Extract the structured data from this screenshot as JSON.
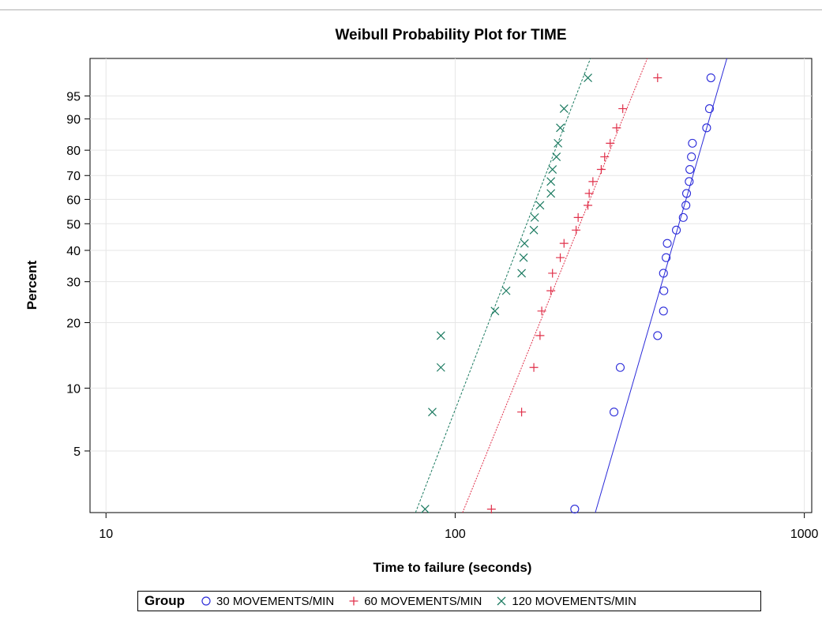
{
  "chart_data": {
    "type": "scatter",
    "title": "Weibull Probability Plot for TIME",
    "xlabel": "Time to failure (seconds)",
    "ylabel": "Percent",
    "x_scale": "log",
    "xlim": [
      9,
      1050
    ],
    "x_ticks": [
      10,
      100,
      1000
    ],
    "x_tick_labels": [
      "10",
      "100",
      "1000"
    ],
    "y_scale": "weibull",
    "ylim": [
      2.5,
      99
    ],
    "y_ticks": [
      5,
      10,
      20,
      30,
      40,
      50,
      60,
      70,
      80,
      90,
      95
    ],
    "y_tick_labels": [
      "5",
      "10",
      "20",
      "30",
      "40",
      "50",
      "60",
      "70",
      "80",
      "90",
      "95"
    ],
    "grid": true,
    "legend_position": "bottom",
    "legend_title": "Group",
    "series": [
      {
        "name": "30 MOVEMENTS/MIN",
        "marker": "circle",
        "color": "#2b2bd9",
        "points": [
          [
            220,
            2.6
          ],
          [
            285,
            7.7
          ],
          [
            297,
            12.5
          ],
          [
            380,
            17.5
          ],
          [
            395,
            22.5
          ],
          [
            396,
            27.5
          ],
          [
            395,
            32.5
          ],
          [
            402,
            37.5
          ],
          [
            405,
            42.5
          ],
          [
            430,
            47.5
          ],
          [
            450,
            52.5
          ],
          [
            458,
            57.5
          ],
          [
            460,
            62.5
          ],
          [
            468,
            67.5
          ],
          [
            470,
            72.5
          ],
          [
            475,
            77.5
          ],
          [
            478,
            82.5
          ],
          [
            525,
            87.5
          ],
          [
            535,
            92.5
          ],
          [
            540,
            97.5
          ]
        ],
        "fit_line": [
          [
            252,
            2.5
          ],
          [
            600,
            99
          ]
        ]
      },
      {
        "name": "60 MOVEMENTS/MIN",
        "marker": "plus",
        "color": "#e0304a",
        "points": [
          [
            127,
            2.6
          ],
          [
            155,
            7.7
          ],
          [
            168,
            12.5
          ],
          [
            175,
            17.5
          ],
          [
            177,
            22.5
          ],
          [
            188,
            27.5
          ],
          [
            190,
            32.5
          ],
          [
            200,
            37.5
          ],
          [
            205,
            42.5
          ],
          [
            222,
            47.5
          ],
          [
            225,
            52.5
          ],
          [
            240,
            57.5
          ],
          [
            242,
            62.5
          ],
          [
            248,
            67.5
          ],
          [
            262,
            72.5
          ],
          [
            268,
            77.5
          ],
          [
            278,
            82.5
          ],
          [
            290,
            87.5
          ],
          [
            302,
            92.5
          ],
          [
            380,
            97.5
          ]
        ],
        "fit_line": [
          [
            105,
            2.5
          ],
          [
            355,
            99
          ]
        ]
      },
      {
        "name": "120 MOVEMENTS/MIN",
        "marker": "x",
        "color": "#1b7a60",
        "points": [
          [
            82,
            2.6
          ],
          [
            86,
            7.7
          ],
          [
            91,
            12.5
          ],
          [
            91,
            17.5
          ],
          [
            130,
            22.5
          ],
          [
            140,
            27.5
          ],
          [
            155,
            32.5
          ],
          [
            157,
            37.5
          ],
          [
            158,
            42.5
          ],
          [
            168,
            47.5
          ],
          [
            169,
            52.5
          ],
          [
            175,
            57.5
          ],
          [
            188,
            62.5
          ],
          [
            188,
            67.5
          ],
          [
            190,
            72.5
          ],
          [
            195,
            77.5
          ],
          [
            197,
            82.5
          ],
          [
            200,
            87.5
          ],
          [
            205,
            92.5
          ],
          [
            240,
            97.5
          ]
        ],
        "fit_line": [
          [
            77,
            2.5
          ],
          [
            244,
            99
          ]
        ]
      }
    ]
  }
}
